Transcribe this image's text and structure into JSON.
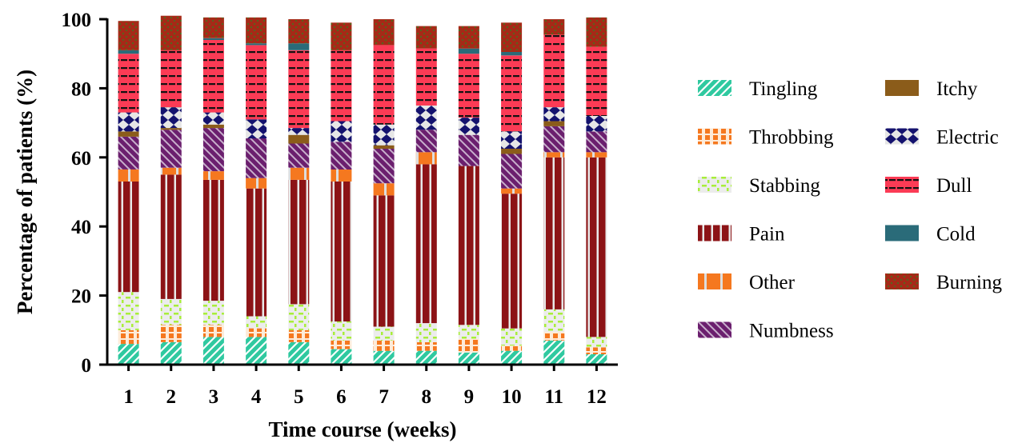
{
  "chart_data": {
    "type": "bar",
    "stacked": true,
    "xlabel": "Time course (weeks)",
    "ylabel": "Percentage of patients (%)",
    "ylim": [
      0,
      100
    ],
    "yticks": [
      "0",
      "20",
      "40",
      "60",
      "80",
      "100"
    ],
    "categories": [
      "1",
      "2",
      "3",
      "4",
      "5",
      "6",
      "7",
      "8",
      "9",
      "10",
      "11",
      "12"
    ],
    "legend_position": "right",
    "series": [
      {
        "name": "Tingling",
        "color": "#2fc9a0",
        "pattern": "diagonal-stripes",
        "values": [
          6,
          6.5,
          8,
          8,
          6.5,
          4.5,
          4,
          4,
          3.5,
          4,
          7,
          3
        ]
      },
      {
        "name": "Throbbing",
        "color": "#f5781f",
        "pattern": "dashes",
        "values": [
          4,
          5,
          3.5,
          2.5,
          3.5,
          2.5,
          3,
          2.5,
          4,
          1.5,
          2.5,
          2
        ]
      },
      {
        "name": "Stabbing",
        "color": "#a8ee3a",
        "pattern": "dashes",
        "values": [
          11,
          7.5,
          7,
          3.5,
          7.5,
          5.5,
          4,
          5.5,
          4,
          5,
          6.5,
          3
        ]
      },
      {
        "name": "Pain",
        "color": "#8c1316",
        "pattern": "vertical-bars",
        "values": [
          32,
          36,
          35,
          37,
          36,
          40.5,
          38,
          46,
          46,
          39,
          44,
          52
        ]
      },
      {
        "name": "Other",
        "color": "#f5781f",
        "pattern": "block",
        "values": [
          3.5,
          2,
          2.5,
          3,
          3.5,
          3.5,
          3.5,
          3.5,
          0,
          1.5,
          1.5,
          1.5
        ]
      },
      {
        "name": "Numbness",
        "color": "#6b1f6e",
        "pattern": "diagonal-stripes",
        "values": [
          9.5,
          11,
          12.5,
          11.5,
          7,
          8,
          10,
          6.5,
          9,
          10,
          7.5,
          6
        ]
      },
      {
        "name": "Itchy",
        "color": "#8b5c1a",
        "pattern": "solid",
        "values": [
          1.5,
          0.5,
          1,
          0,
          2.5,
          0,
          1,
          0,
          0,
          1.5,
          1.5,
          0
        ]
      },
      {
        "name": "Electric",
        "color": "#14126e",
        "pattern": "diamonds",
        "values": [
          5.5,
          6,
          3.5,
          5.5,
          2,
          6,
          6,
          7,
          5,
          5,
          4,
          4.5
        ]
      },
      {
        "name": "Dull",
        "color": "#fb3b55",
        "pattern": "horizontal-bars",
        "values": [
          17,
          16.5,
          21,
          21.5,
          22.5,
          20.5,
          23,
          16.5,
          18.5,
          22,
          21,
          20
        ]
      },
      {
        "name": "Cold",
        "color": "#2a6b79",
        "pattern": "solid",
        "values": [
          1,
          0,
          0.5,
          0.5,
          2,
          0,
          0,
          0,
          1.5,
          1,
          0,
          0
        ]
      },
      {
        "name": "Burning",
        "color": "#a52a17",
        "pattern": "dots",
        "values": [
          8.5,
          10,
          6,
          7.5,
          7,
          8,
          7.5,
          6.5,
          6.5,
          8.5,
          4.5,
          8.5
        ]
      }
    ]
  }
}
